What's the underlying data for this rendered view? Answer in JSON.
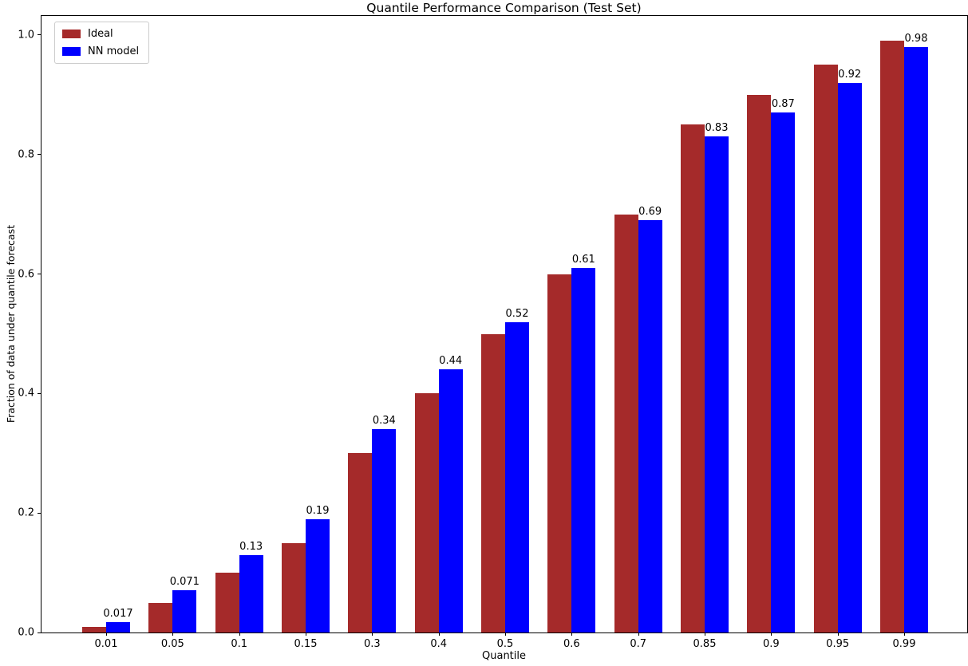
{
  "chart_data": {
    "type": "bar",
    "title": "Quantile Performance Comparison (Test Set)",
    "xlabel": "Quantile",
    "ylabel": "Fraction of data under quantile forecast",
    "categories": [
      "0.01",
      "0.05",
      "0.1",
      "0.15",
      "0.3",
      "0.4",
      "0.5",
      "0.6",
      "0.7",
      "0.85",
      "0.9",
      "0.95",
      "0.99"
    ],
    "series": [
      {
        "name": "Ideal",
        "color": "#A52A2A",
        "values": [
          0.01,
          0.05,
          0.1,
          0.15,
          0.3,
          0.4,
          0.5,
          0.6,
          0.7,
          0.85,
          0.9,
          0.95,
          0.99
        ]
      },
      {
        "name": "NN model",
        "color": "#0000FF",
        "values": [
          0.017,
          0.071,
          0.13,
          0.19,
          0.34,
          0.44,
          0.52,
          0.61,
          0.69,
          0.83,
          0.87,
          0.92,
          0.98
        ],
        "value_labels": [
          "0.017",
          "0.071",
          "0.13",
          "0.19",
          "0.34",
          "0.44",
          "0.52",
          "0.61",
          "0.69",
          "0.83",
          "0.87",
          "0.92",
          "0.98"
        ]
      }
    ],
    "y_tick_labels": [
      "0.0",
      "0.2",
      "0.4",
      "0.6",
      "0.8",
      "1.0"
    ],
    "y_tick_values": [
      0.0,
      0.2,
      0.4,
      0.6,
      0.8,
      1.0
    ],
    "ylim": [
      0,
      1.032
    ],
    "grid": false,
    "legend_position": "upper left",
    "background_color": "#ffffff",
    "spine_color": "#000000"
  }
}
